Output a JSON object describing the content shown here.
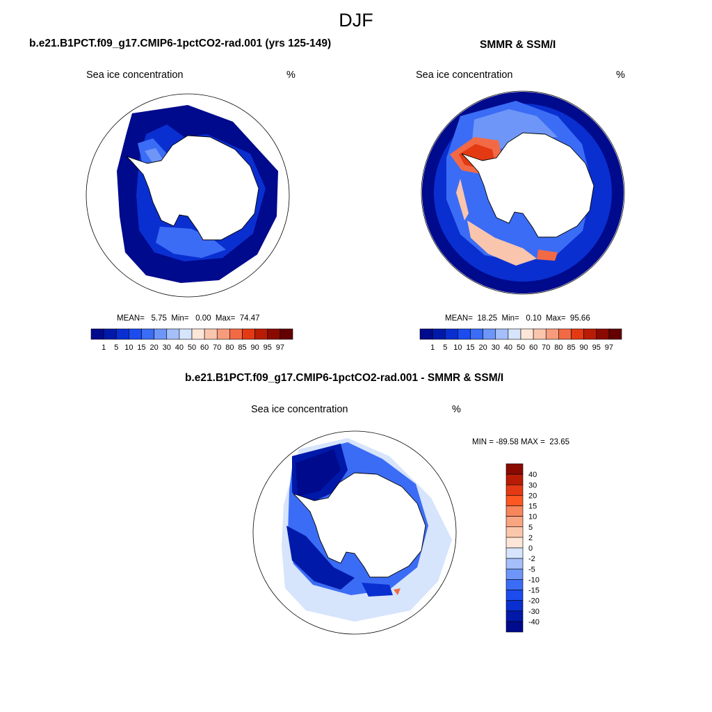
{
  "season": "DJF",
  "panels": [
    {
      "title": "b.e21.B1PCT.f09_g17.CMIP6-1pctCO2-rad.001 (yrs 125-149)",
      "left_label": "Sea ice concentration",
      "right_label": "%",
      "stats": "MEAN=   5.75  Min=   0.00  Max=  74.47"
    },
    {
      "title": "SMMR & SSM/I",
      "left_label": "Sea ice concentration",
      "right_label": "%",
      "stats": "MEAN=  18.25  Min=   0.10  Max=  95.66"
    },
    {
      "title": "b.e21.B1PCT.f09_g17.CMIP6-1pctCO2-rad.001 - SMMR & SSM/I",
      "left_label": "Sea ice concentration",
      "right_label": "%",
      "stats": "MIN = -89.58 MAX =  23.65"
    }
  ],
  "colorbar_concentration": {
    "levels": [
      "1",
      "5",
      "10",
      "15",
      "20",
      "30",
      "40",
      "50",
      "60",
      "70",
      "80",
      "85",
      "90",
      "95",
      "97"
    ],
    "colors": [
      "#000a8c",
      "#0019a8",
      "#0a2fd0",
      "#1c4bee",
      "#3b6cf5",
      "#6e96f8",
      "#a5bffa",
      "#d6e4fc",
      "#fde6d8",
      "#f9c5ad",
      "#f69c7c",
      "#f26a45",
      "#e33a14",
      "#b91c05",
      "#8a0a00",
      "#640000"
    ]
  },
  "colorbar_difference": {
    "levels": [
      "40",
      "30",
      "20",
      "15",
      "10",
      "5",
      "2",
      "0",
      "-2",
      "-5",
      "-10",
      "-15",
      "-20",
      "-30",
      "-40"
    ],
    "colors": [
      "#8a0a00",
      "#b91c05",
      "#e33a14",
      "#ff5722",
      "#f7865d",
      "#f9a582",
      "#fbc7ab",
      "#fde6d8",
      "#d6e4fc",
      "#a5bffa",
      "#6e96f8",
      "#3b6cf5",
      "#1c4bee",
      "#0a2fd0",
      "#0019a8",
      "#000a8c"
    ]
  }
}
